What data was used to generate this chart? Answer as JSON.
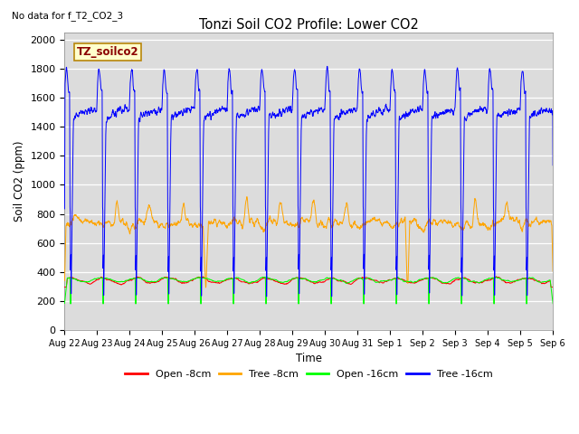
{
  "title": "Tonzi Soil CO2 Profile: Lower CO2",
  "subtitle": "No data for f_T2_CO2_3",
  "xlabel": "Time",
  "ylabel": "Soil CO2 (ppm)",
  "ylim": [
    0,
    2050
  ],
  "yticks": [
    0,
    200,
    400,
    600,
    800,
    1000,
    1200,
    1400,
    1600,
    1800,
    2000
  ],
  "legend_label": "TZ_soilco2",
  "legend_entries": [
    "Open -8cm",
    "Tree -8cm",
    "Open -16cm",
    "Tree -16cm"
  ],
  "legend_colors": [
    "red",
    "orange",
    "lime",
    "blue"
  ],
  "plot_bg_color": "#dcdcdc",
  "fig_bg_color": "#ffffff",
  "day_labels": [
    "Aug 22",
    "Aug 23",
    "Aug 24",
    "Aug 25",
    "Aug 26",
    "Aug 27",
    "Aug 28",
    "Aug 29",
    "Aug 30",
    "Aug 31",
    "Sep 1",
    "Sep 2",
    "Sep 3",
    "Sep 4",
    "Sep 5",
    "Sep 6"
  ]
}
